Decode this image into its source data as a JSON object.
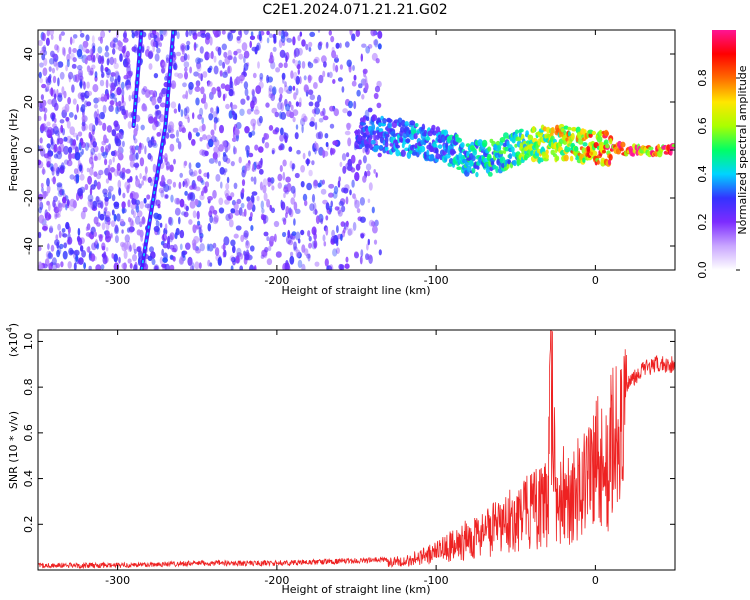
{
  "title": "C2E1.2024.071.21.21.G02",
  "chart_data": [
    {
      "type": "heatmap",
      "title": "",
      "xlabel": "Height of straight line (km)",
      "ylabel": "Frequency (Hz)",
      "xlim": [
        -350,
        50
      ],
      "ylim": [
        -50,
        50
      ],
      "xticks": [
        "-300",
        "-200",
        "-100",
        "0"
      ],
      "xtick_values": [
        -300,
        -200,
        -100,
        0
      ],
      "yticks": [
        "-40",
        "-20",
        "0",
        "20",
        "40"
      ],
      "ytick_values": [
        -40,
        -20,
        0,
        20,
        40
      ],
      "colorbar": {
        "label": "Normalized spectral amplitude",
        "range": [
          0,
          1
        ],
        "ticks": [
          "0.0",
          "0.2",
          "0.4",
          "0.6",
          "0.8"
        ],
        "tick_values": [
          0.0,
          0.2,
          0.4,
          0.6,
          0.8
        ],
        "colors": [
          "#ffffff",
          "#c9a6ff",
          "#7d2cff",
          "#3333ff",
          "#00d4ff",
          "#00ff66",
          "#aaff00",
          "#ffe600",
          "#ff6a00",
          "#ff0000",
          "#ff1493"
        ]
      },
      "features": [
        {
          "name": "",
          "x": [
            -285,
            -280,
            -275,
            -270,
            -265
          ],
          "y": [
            -50,
            -30,
            -10,
            10,
            50
          ]
        },
        {
          "name": "",
          "x": [
            -290,
            -285
          ],
          "y": [
            10,
            50
          ]
        }
      ],
      "ridge": {
        "x": [
          -150,
          -130,
          -110,
          -100,
          -90,
          -80,
          -70,
          -60,
          -50,
          -40,
          -30,
          -20,
          -10,
          0,
          10,
          20,
          30,
          40,
          50
        ],
        "y": [
          8,
          6,
          4,
          2,
          0,
          -3,
          -4,
          -2,
          1,
          2,
          3,
          3,
          2,
          1,
          1,
          0,
          0,
          0,
          0
        ],
        "amplitude": [
          0.3,
          0.35,
          0.4,
          0.35,
          0.4,
          0.45,
          0.45,
          0.5,
          0.5,
          0.6,
          0.65,
          0.7,
          0.75,
          0.8,
          0.85,
          0.9,
          0.9,
          0.9,
          0.9
        ]
      }
    },
    {
      "type": "line",
      "title": "",
      "xlabel": "Height of straight line (km)",
      "ylabel": "SNR (10 * v/v)",
      "y_multiplier": "(x10",
      "y_multiplier_exp": "4",
      "y_multiplier_close": ")",
      "xlim": [
        -350,
        50
      ],
      "ylim": [
        0,
        1.05
      ],
      "xticks": [
        "-300",
        "-200",
        "-100",
        "0"
      ],
      "xtick_values": [
        -300,
        -200,
        -100,
        0
      ],
      "yticks": [
        "0.2",
        "0.4",
        "0.6",
        "0.8",
        "1.0"
      ],
      "ytick_values": [
        0.2,
        0.4,
        0.6,
        0.8,
        1.0
      ],
      "color": "#ee2222",
      "series": [
        {
          "x": [
            -350,
            -300,
            -250,
            -200,
            -150,
            -120,
            -100,
            -80,
            -60,
            -50,
            -40,
            -30,
            -28,
            -25,
            -20,
            -15,
            -10,
            -5,
            0,
            5,
            10,
            15,
            20,
            25,
            30,
            40,
            50
          ],
          "y": [
            0.02,
            0.02,
            0.03,
            0.03,
            0.04,
            0.05,
            0.1,
            0.18,
            0.25,
            0.3,
            0.35,
            0.38,
            1.05,
            0.42,
            0.45,
            0.4,
            0.5,
            0.55,
            0.65,
            0.58,
            0.7,
            0.75,
            0.82,
            0.85,
            0.88,
            0.9,
            0.9
          ]
        }
      ]
    }
  ]
}
